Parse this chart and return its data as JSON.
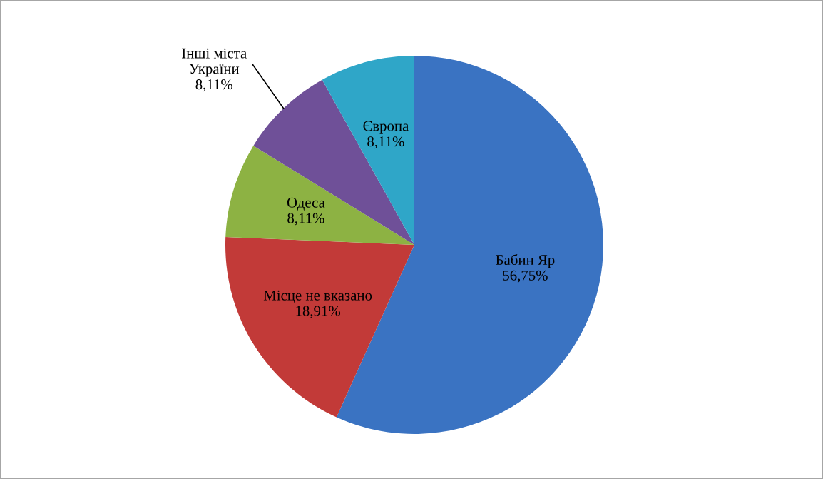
{
  "chart_data": {
    "type": "pie",
    "categories": [
      "Бабин Яр",
      "Місце не вказано",
      "Одеса",
      "Інші міста\nУкраїни",
      "Європа"
    ],
    "values": [
      56.75,
      18.91,
      8.11,
      8.11,
      8.11
    ],
    "colors": [
      "#3a73c2",
      "#c23a38",
      "#8db243",
      "#6f5098",
      "#2fa6c8"
    ],
    "value_labels": [
      "56,75%",
      "18,91%",
      "8,11%",
      "8,11%",
      "8,11%"
    ],
    "legend": false
  }
}
